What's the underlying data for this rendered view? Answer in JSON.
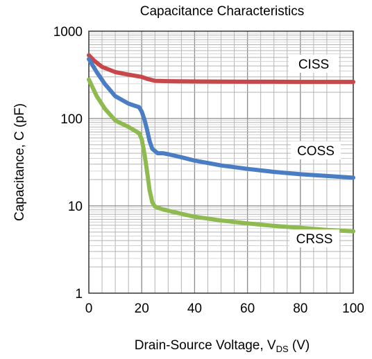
{
  "chart_data": {
    "type": "line",
    "title": "Capacitance Characteristics",
    "xlabel": "Drain-Source Voltage, V",
    "xlabel_sub": "DS",
    "xlabel_unit": " (V)",
    "ylabel": "Capacitance, C (pF)",
    "xlim": [
      0,
      100
    ],
    "ylim": [
      1,
      1000
    ],
    "y_scale": "log",
    "grid": true,
    "x_ticks": [
      0,
      20,
      40,
      60,
      80,
      100
    ],
    "x_tick_labels": [
      "0",
      "20",
      "40",
      "60",
      "80",
      "100"
    ],
    "y_ticks": [
      1,
      10,
      100,
      1000
    ],
    "y_tick_labels": [
      "1",
      "10",
      "100",
      "1000"
    ],
    "series": [
      {
        "name": "CISS",
        "color": "#c8474b",
        "x": [
          0,
          2,
          5,
          10,
          15,
          20,
          22,
          25,
          30,
          40,
          50,
          60,
          70,
          80,
          90,
          100
        ],
        "y": [
          530,
          460,
          390,
          340,
          318,
          300,
          285,
          270,
          268,
          266,
          265,
          264,
          264,
          263,
          263,
          263
        ]
      },
      {
        "name": "COSS",
        "color": "#4a7ec4",
        "x": [
          0,
          3,
          6,
          10,
          15,
          19,
          20,
          21,
          22,
          23,
          24,
          26,
          28,
          30,
          35,
          40,
          50,
          60,
          70,
          80,
          90,
          100
        ],
        "y": [
          480,
          340,
          250,
          180,
          148,
          135,
          120,
          98,
          75,
          55,
          45,
          40,
          40,
          39,
          36,
          33,
          29,
          26.5,
          24.5,
          23,
          22,
          21
        ]
      },
      {
        "name": "CRSS",
        "color": "#8fba4f",
        "x": [
          0,
          3,
          6,
          10,
          15,
          19,
          20,
          21,
          22,
          23,
          24,
          25,
          27,
          30,
          35,
          40,
          50,
          60,
          70,
          80,
          90,
          100
        ],
        "y": [
          280,
          180,
          130,
          95,
          80,
          68,
          58,
          40,
          25,
          15,
          11,
          9.8,
          9.3,
          8.8,
          8.1,
          7.5,
          6.8,
          6.3,
          5.9,
          5.6,
          5.3,
          5.1
        ]
      }
    ]
  }
}
